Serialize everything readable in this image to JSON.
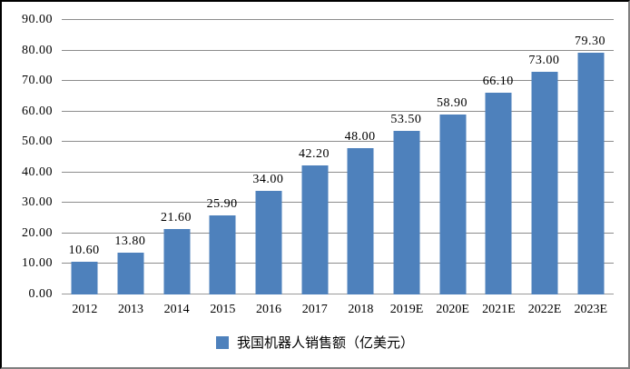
{
  "chart_data": {
    "type": "bar",
    "title": "",
    "xlabel": "",
    "ylabel": "",
    "legend": "我国机器人销售额（亿美元）",
    "legend_position": "bottom",
    "grid": true,
    "categories": [
      "2012",
      "2013",
      "2014",
      "2015",
      "2016",
      "2017",
      "2018",
      "2019E",
      "2020E",
      "2021E",
      "2022E",
      "2023E"
    ],
    "values": [
      10.6,
      13.8,
      21.6,
      25.9,
      34.0,
      42.2,
      48.0,
      53.5,
      58.9,
      66.1,
      73.0,
      79.3
    ],
    "value_labels": [
      "10.60",
      "13.80",
      "21.60",
      "25.90",
      "34.00",
      "42.20",
      "48.00",
      "53.50",
      "58.90",
      "66.10",
      "73.00",
      "79.30"
    ],
    "ylim": [
      0,
      90
    ],
    "y_tick_labels": [
      "0.00",
      "10.00",
      "20.00",
      "30.00",
      "40.00",
      "50.00",
      "60.00",
      "70.00",
      "80.00",
      "90.00"
    ],
    "colors": {
      "bar": "#4E81BC",
      "gridline": "#8C8C8C",
      "axis": "#999999",
      "text": "#000000",
      "background": "#FFFFFF"
    }
  }
}
